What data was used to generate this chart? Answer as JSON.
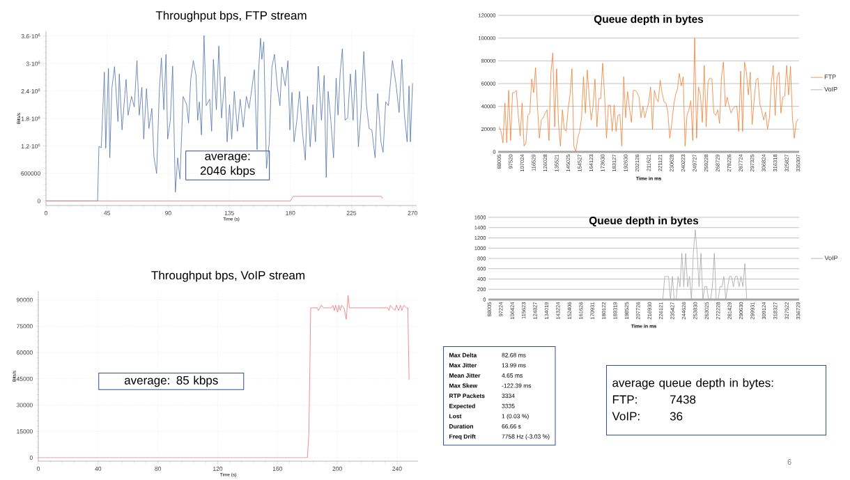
{
  "chart_data": [
    {
      "type": "line",
      "title": "Throughput bps, FTP stream",
      "xlabel": "Time (s)",
      "ylabel": "Bits/s",
      "grid": true,
      "xlim": [
        0,
        273
      ],
      "xticks": [
        0,
        45,
        90,
        135,
        180,
        225,
        270
      ],
      "ylim": [
        -100000,
        3700000
      ],
      "yticks": [
        0,
        600000,
        {
          "value": 1200000,
          "label": "1.2·10$^{6}$"
        },
        {
          "value": 1800000,
          "label": "1.8·10$^{6}$"
        },
        {
          "value": 2400000,
          "label": "2.4·10$^{6}$"
        },
        {
          "value": 3000000,
          "label": "3·10$^{6}$"
        },
        {
          "value": 3600000,
          "label": "3.6·10$^{6}$"
        }
      ],
      "annotations": [
        "average: 2046 kbps"
      ],
      "series": [
        {
          "color": "#4f72a8",
          "x": [
            0,
            38,
            39,
            40.7,
            43,
            44,
            46,
            47,
            48.5,
            50.5,
            53,
            54,
            56,
            59,
            60.5,
            63,
            65,
            67,
            68.7,
            70.6,
            72,
            74,
            75.8,
            78,
            79.5,
            81.5,
            83.5,
            85,
            86.8,
            88.4,
            89.6,
            91.6,
            93.3,
            95.3,
            97,
            98.7,
            101,
            103.6,
            105,
            106.6,
            108.5,
            110.5,
            111.7,
            113,
            114.5,
            116.4,
            118,
            120.6,
            122,
            123.3,
            125.5,
            127.3,
            129.3,
            131.8,
            133.4,
            135.2,
            136.8,
            138.7,
            141,
            143,
            145.3,
            147.6,
            149.6,
            151.6,
            153.5,
            155.5,
            156.5,
            158,
            159,
            160.4,
            162.4,
            164.4,
            166.4,
            168.3,
            170.3,
            172.3,
            173.7,
            176.2,
            178.2,
            179.6,
            181.2,
            182.7,
            184.7,
            186.7,
            189,
            191,
            192.6,
            194.6,
            196.6,
            198.5,
            200.5,
            202.9,
            204.9,
            206.4,
            207.8,
            209.8,
            211.8,
            213.7,
            215.1,
            216.7,
            218.3,
            220.3,
            222.2,
            224.2,
            226.2,
            228.1,
            230.1,
            232.1,
            234.1,
            236,
            238,
            240,
            242.4,
            244.3,
            246.7,
            248.3,
            250.2,
            252.2,
            255.2,
            257.7,
            260.1,
            262.1,
            264,
            266,
            267.4,
            268.4,
            270
          ],
          "values": [
            0,
            0,
            1190000,
            1160000,
            2810000,
            1150000,
            2890000,
            940000,
            2450000,
            2930000,
            1730000,
            2770000,
            1550000,
            2650000,
            1870000,
            2280000,
            2050000,
            3060000,
            1870000,
            2480000,
            1350000,
            2450000,
            1580000,
            2020000,
            960000,
            600000,
            2420000,
            3120000,
            1990000,
            3200000,
            1350000,
            1760000,
            2940000,
            190000,
            940000,
            480000,
            2280000,
            2100000,
            1700000,
            2650000,
            3060000,
            2740000,
            1760000,
            2160000,
            1440000,
            3610000,
            2080000,
            2220000,
            1520000,
            3090000,
            1990000,
            3380000,
            1810000,
            2710000,
            1290000,
            2100000,
            1350000,
            2390000,
            1520000,
            2220000,
            1610000,
            2280000,
            2020000,
            2450000,
            2860000,
            1120000,
            2770000,
            3550000,
            3090000,
            3470000,
            710000,
            1260000,
            2920000,
            3200000,
            2510000,
            2080000,
            2920000,
            2510000,
            3060000,
            1550000,
            2370000,
            1290000,
            1730000,
            2390000,
            1470000,
            890000,
            2280000,
            1180000,
            2100000,
            1290000,
            2940000,
            1760000,
            2740000,
            510000,
            2390000,
            1760000,
            940000,
            2680000,
            1870000,
            2800000,
            3320000,
            1760000,
            1810000,
            2770000,
            1760000,
            2860000,
            1180000,
            2000000,
            3260000,
            2100000,
            1580000,
            1550000,
            940000,
            2340000,
            1290000,
            1060000,
            2160000,
            2080000,
            3060000,
            2570000,
            1930000,
            3090000,
            1870000,
            1290000,
            2510000,
            1290000,
            2570000
          ]
        },
        {
          "color": "#f07070",
          "x": [
            0,
            180,
            182,
            247,
            248
          ],
          "values": [
            0,
            0,
            100000,
            100000,
            50000
          ]
        }
      ]
    },
    {
      "type": "line",
      "title": "Throughput bps, VoIP stream",
      "xlabel": "Time (s)",
      "ylabel": "Bits/s",
      "grid": true,
      "xlim": [
        0,
        254
      ],
      "xticks": [
        0,
        40,
        80,
        120,
        160,
        200,
        240
      ],
      "ylim": [
        -2000,
        95000
      ],
      "yticks": [
        0,
        15000,
        30000,
        45000,
        60000,
        75000,
        90000
      ],
      "annotations": [
        "average: 85 kbps"
      ],
      "series": [
        {
          "color": "#f07070",
          "x": [
            0,
            180,
            181,
            182.2,
            186.6,
            187.4,
            189.3,
            190.7,
            196,
            197,
            198,
            198.8,
            200.2,
            201,
            202,
            202.8,
            204.5,
            206,
            207.2,
            208.1,
            233.7,
            234.6,
            235.5,
            236.8,
            238.6,
            239.6,
            241,
            242.2,
            243.2,
            244.5,
            246.3,
            247.2,
            248
          ],
          "values": [
            0,
            0,
            13800,
            85500,
            85500,
            84000,
            87000,
            85500,
            85500,
            87000,
            84000,
            87000,
            83000,
            87000,
            84000,
            87000,
            85500,
            79000,
            92500,
            85500,
            85500,
            84000,
            87000,
            85500,
            84000,
            87000,
            84000,
            87000,
            84000,
            87000,
            85500,
            85500,
            44500
          ]
        }
      ]
    },
    {
      "type": "line",
      "title": "Queue depth in bytes",
      "xlabel": "Time in ms",
      "grid": "y",
      "legend": "right",
      "ylim": [
        0,
        120000
      ],
      "yticks": [
        0,
        20000,
        40000,
        60000,
        80000,
        100000,
        120000
      ],
      "categories": [
        "88005",
        null,
        null,
        null,
        null,
        null,
        "97520",
        null,
        null,
        null,
        null,
        null,
        "107024",
        null,
        null,
        null,
        null,
        null,
        "116529",
        null,
        null,
        null,
        null,
        null,
        "126028",
        null,
        null,
        null,
        null,
        null,
        "135521",
        null,
        null,
        null,
        null,
        null,
        "145025",
        null,
        null,
        null,
        null,
        null,
        "154527",
        null,
        null,
        null,
        null,
        null,
        "164123",
        null,
        null,
        null,
        null,
        null,
        "173630",
        null,
        null,
        null,
        null,
        null,
        "183127",
        null,
        null,
        null,
        null,
        null,
        "192630",
        null,
        null,
        null,
        null,
        null,
        "202126",
        null,
        null,
        null,
        null,
        null,
        "211621",
        null,
        null,
        null,
        null,
        null,
        "221121",
        null,
        null,
        null,
        null,
        null,
        "230628",
        null,
        null,
        null,
        null,
        null,
        "240223",
        null,
        null,
        null,
        null,
        null,
        "249727",
        null,
        null,
        null,
        null,
        null,
        "259228",
        null,
        null,
        null,
        null,
        null,
        "268729",
        null,
        null,
        null,
        null,
        null,
        "278226",
        null,
        null,
        null,
        null,
        null,
        "287724",
        null,
        null,
        null,
        null,
        null,
        "297325",
        null,
        null,
        null,
        null,
        null,
        "306824",
        null,
        null,
        null,
        null,
        null,
        "316318",
        null,
        null,
        null,
        null,
        null,
        "325827",
        null,
        null,
        null,
        null,
        null,
        "335307"
      ],
      "series": [
        {
          "name": "FTP",
          "color": "#ed7d31",
          "values": [
            22000,
            18000,
            8000,
            43000,
            8000,
            54000,
            10000,
            52000,
            52000,
            54000,
            32000,
            14000,
            43000,
            5000,
            8000,
            32000,
            34000,
            64000,
            52000,
            74000,
            40000,
            12000,
            28000,
            30000,
            34000,
            37000,
            10000,
            69000,
            87000,
            22000,
            73000,
            24000,
            5000,
            37000,
            20000,
            18000,
            38000,
            50000,
            73000,
            5000,
            0,
            12000,
            18000,
            30000,
            66000,
            34000,
            72000,
            48000,
            28000,
            40000,
            64000,
            22000,
            47000,
            47000,
            78000,
            50000,
            12000,
            41000,
            41000,
            18000,
            41000,
            18000,
            32000,
            33000,
            5000,
            66000,
            30000,
            53000,
            38000,
            26000,
            54000,
            54000,
            52000,
            48000,
            30000,
            40000,
            30000,
            37000,
            43000,
            57000,
            20000,
            54000,
            47000,
            44000,
            63000,
            52000,
            44000,
            43000,
            35000,
            12000,
            24000,
            40000,
            50000,
            55000,
            69000,
            58000,
            66000,
            5000,
            32000,
            37000,
            45000,
            10000,
            100000,
            12000,
            57000,
            50000,
            26000,
            76000,
            22000,
            62000,
            65000,
            64000,
            34000,
            32000,
            37000,
            25000,
            66000,
            79000,
            40000,
            48000,
            40000,
            34000,
            38000,
            40000,
            40000,
            18000,
            71000,
            18000,
            79000,
            70000,
            50000,
            70000,
            24000,
            45000,
            63000,
            65000,
            42000,
            36000,
            28000,
            35000,
            20000,
            30000,
            61000,
            76000,
            32000,
            66000,
            70000,
            34000,
            48000,
            49000,
            76000,
            50000,
            75000,
            30000,
            12000,
            26000,
            29000
          ]
        },
        {
          "name": "VoIP",
          "color": "#a5a5a5",
          "values": [
            0,
            0,
            0,
            0,
            0,
            0,
            0,
            0,
            0,
            0,
            0,
            0,
            0,
            0,
            0,
            0,
            0,
            0,
            0,
            0,
            0,
            0,
            0,
            0,
            0,
            0,
            0,
            0,
            0,
            0,
            0,
            0,
            0,
            0,
            0,
            0,
            0,
            0,
            0,
            0,
            0,
            0,
            0,
            0,
            0,
            0,
            0,
            0,
            0,
            0,
            0,
            0,
            0,
            0,
            0,
            0,
            0,
            0,
            0,
            0,
            0,
            0,
            0,
            0,
            0,
            0,
            0,
            0,
            0,
            0,
            0,
            0,
            0,
            0,
            0,
            0,
            0,
            0,
            0,
            0,
            0,
            0,
            0,
            0,
            0,
            0,
            0,
            0,
            0,
            0,
            0,
            0,
            0,
            0,
            0,
            0,
            0,
            0,
            0,
            0,
            0,
            0,
            0,
            0,
            0,
            0,
            0,
            0,
            0,
            0,
            0,
            0,
            0,
            0,
            0,
            0,
            0,
            0,
            0,
            0,
            0,
            0,
            0,
            0,
            0,
            0,
            0,
            0,
            0,
            0,
            0,
            0,
            0,
            0,
            0,
            0,
            0,
            0,
            0,
            0,
            0,
            0,
            0,
            0,
            0,
            0,
            0,
            0,
            0,
            0,
            0,
            0,
            0,
            0,
            0,
            0,
            0
          ]
        }
      ]
    },
    {
      "type": "line",
      "title": "Queue depth in bytes",
      "xlabel": "Time in ms",
      "grid": "y",
      "legend": "right",
      "ylim": [
        0,
        1600
      ],
      "yticks": [
        0,
        200,
        400,
        600,
        800,
        1000,
        1200,
        1400,
        1600
      ],
      "categories": [
        "88005",
        null,
        null,
        null,
        null,
        null,
        "97224",
        null,
        null,
        null,
        null,
        null,
        "106424",
        null,
        null,
        null,
        null,
        null,
        "115623",
        null,
        null,
        null,
        null,
        null,
        "124827",
        null,
        null,
        null,
        null,
        null,
        "134019",
        null,
        null,
        null,
        null,
        null,
        "143224",
        null,
        null,
        null,
        null,
        null,
        "152406",
        null,
        null,
        null,
        null,
        null,
        "161626",
        null,
        null,
        null,
        null,
        null,
        "170931",
        null,
        null,
        null,
        null,
        null,
        "180122",
        null,
        null,
        null,
        null,
        null,
        "189319",
        null,
        null,
        null,
        null,
        null,
        "198525",
        null,
        null,
        null,
        null,
        null,
        "207726",
        null,
        null,
        null,
        null,
        null,
        "216930",
        null,
        null,
        null,
        null,
        null,
        "226121",
        null,
        null,
        null,
        null,
        null,
        "235427",
        null,
        null,
        null,
        null,
        null,
        "244626",
        null,
        null,
        null,
        null,
        null,
        "253830",
        null,
        null,
        null,
        null,
        null,
        "263025",
        null,
        null,
        null,
        null,
        null,
        "272228",
        null,
        null,
        null,
        null,
        null,
        "281429",
        null,
        null,
        null,
        null,
        null,
        "290630",
        null,
        null,
        null,
        null,
        null,
        "299931",
        null,
        null,
        null,
        null,
        null,
        "309124",
        null,
        null,
        null,
        null,
        null,
        "318327",
        null,
        null,
        null,
        null,
        null,
        "327522",
        null,
        null,
        null,
        null,
        null,
        "336729"
      ],
      "series": [
        {
          "name": "VoIP",
          "color": "#a5a5a5",
          "values": [
            0,
            0,
            0,
            0,
            0,
            0,
            0,
            0,
            0,
            0,
            0,
            0,
            0,
            0,
            0,
            0,
            0,
            0,
            0,
            0,
            0,
            0,
            0,
            0,
            0,
            0,
            0,
            0,
            0,
            0,
            0,
            0,
            0,
            0,
            0,
            0,
            0,
            0,
            0,
            0,
            0,
            0,
            0,
            0,
            0,
            0,
            0,
            0,
            0,
            0,
            0,
            0,
            0,
            0,
            0,
            0,
            0,
            0,
            0,
            0,
            0,
            0,
            0,
            0,
            0,
            0,
            0,
            0,
            0,
            0,
            0,
            0,
            0,
            0,
            0,
            0,
            0,
            0,
            0,
            0,
            0,
            0,
            0,
            0,
            0,
            0,
            0,
            0,
            0,
            0,
            0,
            0,
            450,
            450,
            450,
            0,
            450,
            0,
            0,
            450,
            250,
            900,
            250,
            900,
            250,
            450,
            0,
            900,
            1360,
            900,
            250,
            900,
            0,
            250,
            250,
            0,
            0,
            250,
            900,
            0,
            0,
            250,
            250,
            450,
            0,
            250,
            450,
            450,
            250,
            450,
            450,
            250,
            450,
            250,
            700,
            0,
            0,
            0,
            0,
            0,
            0,
            0,
            0,
            0,
            0,
            0,
            0,
            0,
            0,
            0,
            0,
            0,
            0,
            0,
            0,
            0,
            0,
            0,
            0,
            0,
            0,
            0,
            0
          ]
        }
      ]
    },
    {
      "type": "other",
      "annotations": [
        "Max Delta",
        "82.68 ms",
        "Max Jitter",
        "13.99 ms",
        "Mean Jitter",
        "4.65 ms",
        "Max Skew",
        "-122.39 ms",
        "RTP Packets",
        "3334",
        "Expected",
        "3335",
        "Lost",
        "1 (0.03 %)",
        "Duration",
        "66.66 s",
        "Freq Drift",
        "7758 Hz (-3.03 %)"
      ]
    },
    {
      "type": "other",
      "annotations": [
        "average queue depth in bytes:",
        "FTP:",
        "7438",
        "VoIP:",
        "36"
      ]
    },
    {
      "type": "other",
      "annotations": [
        "6"
      ]
    }
  ]
}
